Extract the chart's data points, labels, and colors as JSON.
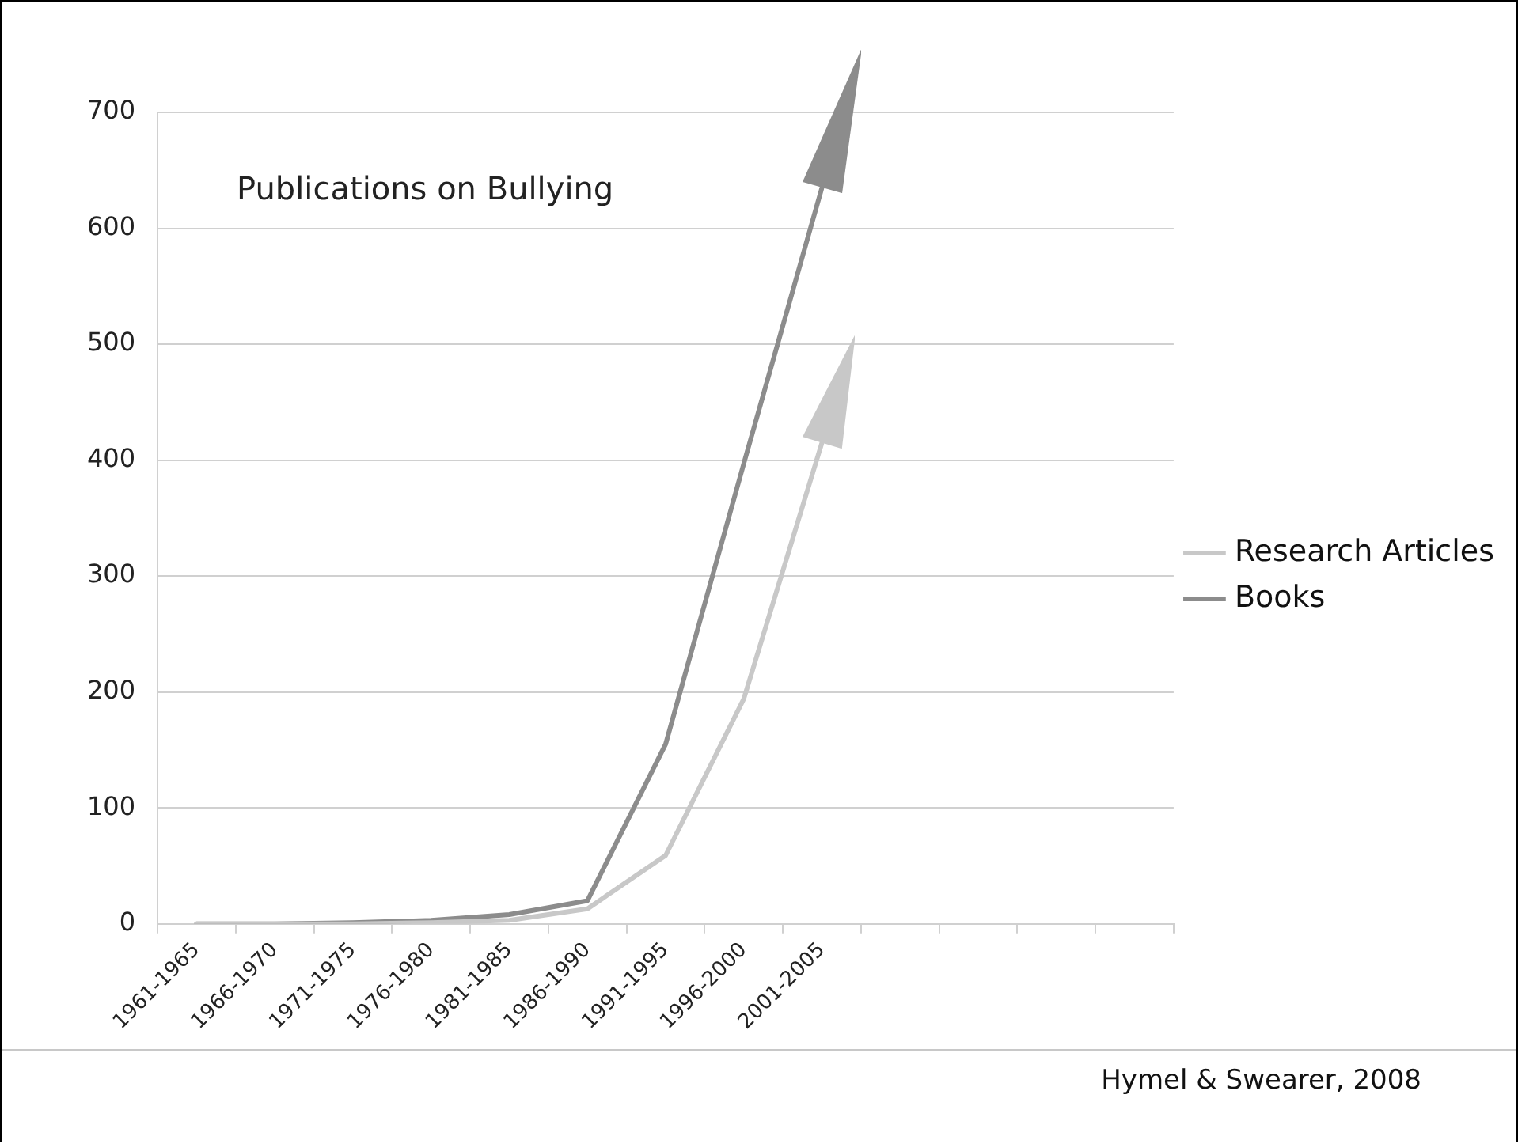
{
  "chart_data": {
    "type": "line",
    "title": "Publications on Bullying",
    "categories": [
      "1961-1965",
      "1966-1970",
      "1971-1975",
      "1976-1980",
      "1981-1985",
      "1986-1990",
      "1991-1995",
      "1996-2000",
      "2001-2005",
      null,
      null,
      null,
      null
    ],
    "series": [
      {
        "name": "Research Articles",
        "color": "#c8c8c8",
        "values": [
          0,
          0,
          0,
          1,
          3,
          13,
          59,
          194,
          415,
          null,
          null,
          null,
          null
        ]
      },
      {
        "name": "Books",
        "color": "#8c8c8c",
        "values": [
          0,
          0,
          1,
          3,
          8,
          20,
          155,
          397,
          635,
          null,
          null,
          null,
          null
        ]
      }
    ],
    "ylim": [
      0,
      700
    ],
    "yticks": [
      0,
      100,
      200,
      300,
      400,
      500,
      600,
      700
    ],
    "grid": "y",
    "legend": "right",
    "marker": "none",
    "line_style": "solid",
    "annotations": [
      "Hymel & Swearer, 2008"
    ]
  }
}
